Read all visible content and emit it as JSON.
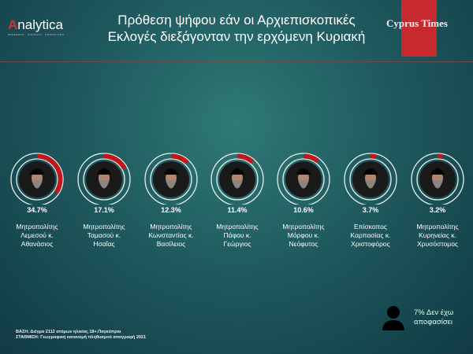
{
  "header": {
    "logo": "Analytica",
    "title_line1": "Πρόθεση ψήφου εάν οι Αρχιεπισκοπικές",
    "title_line2": "Εκλογές διεξάγονταν την ερχόμενη Κυριακή",
    "brand": "Cyprus Times"
  },
  "chart_data": {
    "type": "donut",
    "categories": [
      "Μητροπολίτης Λεμεσού κ. Αθανάσιος",
      "Μητροπολίτης Ταμασού κ. Ησαΐας",
      "Μητροπολίτης Κωνσταντίας κ. Βασίλειος",
      "Μητροπολίτης Πάφου κ. Γεώργιος",
      "Μητροπολίτης Μόρφου κ. Νεόφυτος",
      "Επίσκοπος Καρπασίας κ. Χριστοφόρος",
      "Μητροπολίτης Κυρηνείας κ. Χρυσόστομος"
    ],
    "values": [
      34.7,
      17.1,
      12.3,
      11.4,
      10.6,
      3.7,
      3.2
    ],
    "labels": [
      "34.7%",
      "17.1%",
      "12.3%",
      "11.4%",
      "10.6%",
      "3.7%",
      "3.2%"
    ],
    "name_lines": [
      [
        "Μητροπολίτης",
        "Λεμεσού κ.",
        "Αθανάσιος"
      ],
      [
        "Μητροπολίτης",
        "Ταμασού κ.",
        "Ησαΐας"
      ],
      [
        "Μητροπολίτης",
        "Κωνσταντίας κ.",
        "Βασίλειος"
      ],
      [
        "Μητροπολίτης",
        "Πάφου κ.",
        "Γεώργιος"
      ],
      [
        "Μητροπολίτης",
        "Μόρφου κ.",
        "Νεόφυτος"
      ],
      [
        "Επίσκοπος",
        "Καρπασίας κ.",
        "Χριστοφόρος"
      ],
      [
        "Μητροπολίτης",
        "Κυρηνείας κ.",
        "Χρυσόστομος"
      ]
    ],
    "colors": {
      "fill": "#c0171d",
      "track": "#e8f0ee"
    }
  },
  "undecided": {
    "line1": "7% Δεν έχω",
    "line2": "αποφασίσει"
  },
  "notes": {
    "base": "ΒΑΣΗ: Δείγμα 2112 ατόμων ηλικίας 18+.Παγκύπρια",
    "weight": "ΣΤΑΘΜΙΣΗ: Γεωγραφική κατανομή πληθυσμού απογραφή 2021"
  }
}
